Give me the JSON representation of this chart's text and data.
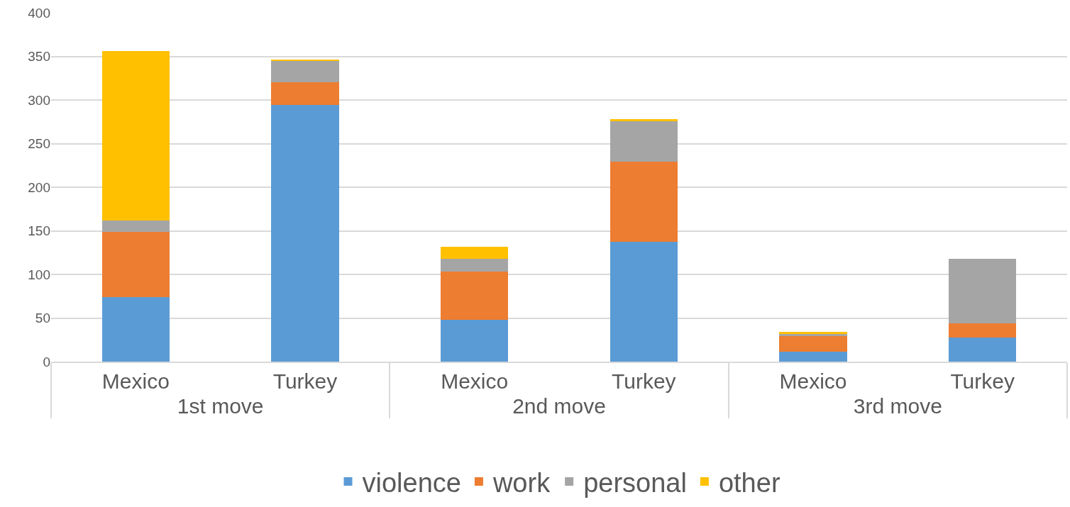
{
  "chart_data": {
    "type": "bar",
    "stacked": true,
    "categories": [
      "Mexico",
      "Turkey",
      "Mexico",
      "Turkey",
      "Mexico",
      "Turkey"
    ],
    "annotations": [
      "1st move",
      "2nd move",
      "3rd move"
    ],
    "series": [
      {
        "name": "violence",
        "color": "#5b9bd5",
        "values": [
          74,
          294,
          48,
          137,
          11,
          28
        ]
      },
      {
        "name": "work",
        "color": "#ed7d31",
        "values": [
          75,
          26,
          55,
          92,
          18,
          16
        ]
      },
      {
        "name": "personal",
        "color": "#a5a5a5",
        "values": [
          13,
          25,
          15,
          47,
          3,
          74
        ]
      },
      {
        "name": "other",
        "color": "#ffc000",
        "values": [
          194,
          1,
          14,
          2,
          2,
          0
        ]
      }
    ],
    "ylim": [
      0,
      400
    ],
    "yticks": [
      0,
      50,
      100,
      150,
      200,
      250,
      300,
      350,
      400
    ],
    "grid": "y",
    "legend": "bottom"
  }
}
